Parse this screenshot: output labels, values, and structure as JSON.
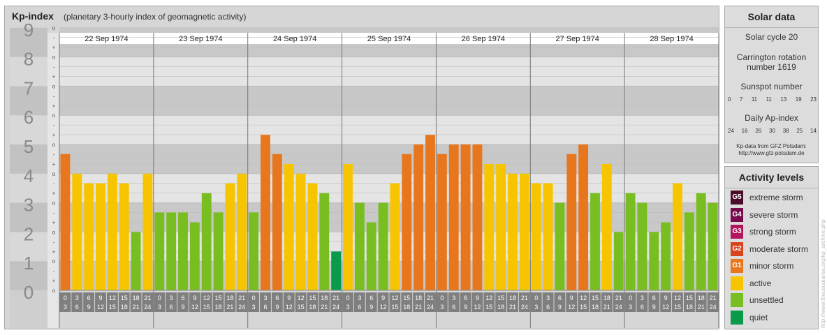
{
  "header": {
    "title": "Kp-index",
    "subtitle": "(planetary 3-hourly index of geomagnetic activity)"
  },
  "chart_data": {
    "type": "bar",
    "title": "Kp-index",
    "subtitle": "(planetary 3-hourly index of geomagnetic activity)",
    "ylim": [
      0,
      9
    ],
    "y_ticks": [
      "0",
      "1",
      "2",
      "3",
      "4",
      "5",
      "6",
      "7",
      "8",
      "9"
    ],
    "sub_ticks": [
      "o",
      "+",
      "-",
      "o",
      "+",
      "-",
      "o",
      "+",
      "-",
      "o",
      "+",
      "-",
      "o",
      "+",
      "-",
      "o",
      "+",
      "-",
      "o",
      "+",
      "-",
      "o",
      "+",
      "-",
      "o",
      "+",
      "-",
      "o"
    ],
    "days": [
      "22 Sep 1974",
      "23 Sep 1974",
      "24 Sep 1974",
      "25 Sep 1974",
      "26 Sep 1974",
      "27 Sep 1974",
      "28 Sep 1974"
    ],
    "hour_labels": [
      [
        "0",
        "3"
      ],
      [
        "3",
        "6"
      ],
      [
        "6",
        "9"
      ],
      [
        "9",
        "12"
      ],
      [
        "12",
        "15"
      ],
      [
        "15",
        "18"
      ],
      [
        "18",
        "21"
      ],
      [
        "21",
        "24"
      ]
    ],
    "values": [
      [
        4.67,
        4.0,
        3.67,
        3.67,
        4.0,
        3.67,
        2.0,
        4.0
      ],
      [
        2.67,
        2.67,
        2.67,
        2.33,
        3.33,
        2.67,
        3.67,
        4.0
      ],
      [
        2.67,
        5.33,
        4.67,
        4.33,
        4.0,
        3.67,
        3.33,
        1.33
      ],
      [
        4.33,
        3.0,
        2.33,
        3.0,
        3.67,
        4.67,
        5.0,
        5.33
      ],
      [
        4.67,
        5.0,
        5.0,
        5.0,
        4.33,
        4.33,
        4.0,
        4.0
      ],
      [
        3.67,
        3.67,
        3.0,
        4.67,
        5.0,
        3.33,
        4.33,
        2.0
      ],
      [
        3.33,
        3.0,
        2.0,
        2.33,
        3.67,
        2.67,
        3.33,
        3.0
      ]
    ],
    "colors": {
      "quiet": "#0a9a4a",
      "unsettled": "#78be20",
      "active": "#f7c500",
      "minor_storm": "#e8761c",
      "moderate_storm": "#d9441c",
      "strong_storm": "#b3145e",
      "severe_storm": "#7a0a4e",
      "extreme_storm": "#4a0a2a"
    },
    "grid": true
  },
  "solar_data": {
    "title": "Solar data",
    "solar_cycle": "Solar cycle 20",
    "carrington_line1": "Carrington rotation",
    "carrington_line2": "number 1619",
    "sunspot_title": "Sunspot number",
    "sunspot_values": [
      "0",
      "7",
      "11",
      "11",
      "13",
      "19",
      "23"
    ],
    "ap_title": "Daily Ap-index",
    "ap_values": [
      "24",
      "16",
      "26",
      "30",
      "38",
      "25",
      "14"
    ],
    "credit_line1": "Kp-data from GFZ Potsdam:",
    "credit_line2": "http://www.gfz-potsdam.de"
  },
  "activity_levels": {
    "title": "Activity levels",
    "items": [
      {
        "code": "G5",
        "label": "extreme storm",
        "color": "#4a0a2a"
      },
      {
        "code": "G4",
        "label": "severe storm",
        "color": "#7a0a4e"
      },
      {
        "code": "G3",
        "label": "strong storm",
        "color": "#b3145e"
      },
      {
        "code": "G2",
        "label": "moderate storm",
        "color": "#d9441c"
      },
      {
        "code": "G1",
        "label": "minor storm",
        "color": "#e8761c"
      },
      {
        "code": "",
        "label": "active",
        "color": "#f7c500"
      },
      {
        "code": "",
        "label": "unsettled",
        "color": "#78be20"
      },
      {
        "code": "",
        "label": "quiet",
        "color": "#0a9a4a"
      }
    ]
  },
  "watermark": "http://www.theusualarea.org/kp_archive.php"
}
